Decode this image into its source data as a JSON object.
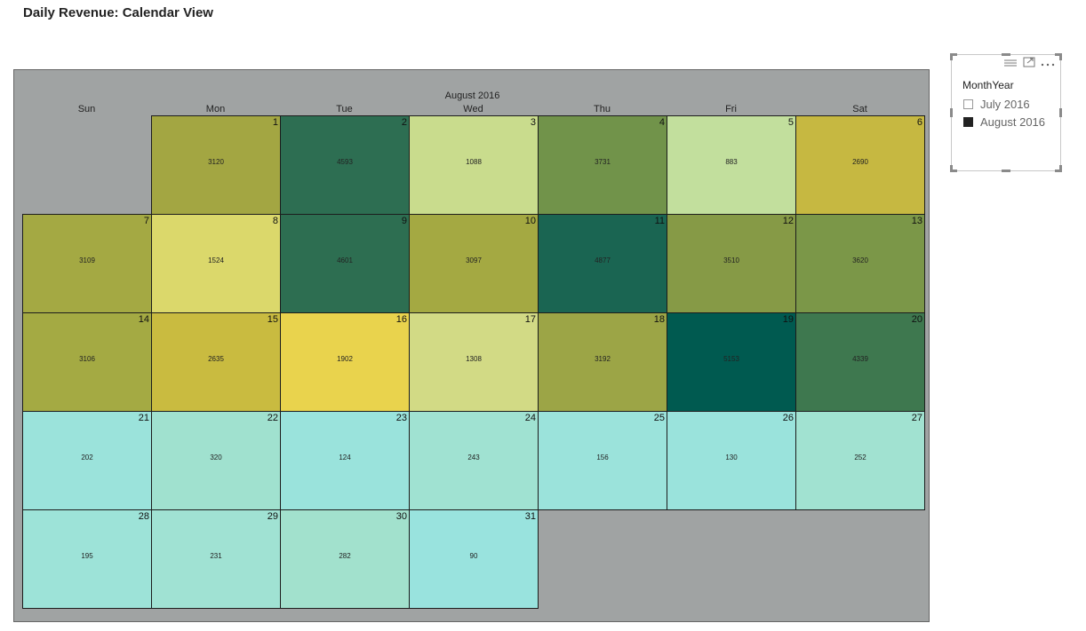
{
  "page": {
    "title": "Daily Revenue: Calendar View"
  },
  "calendar": {
    "month_label": "August 2016",
    "weekdays": [
      "Sun",
      "Mon",
      "Tue",
      "Wed",
      "Thu",
      "Fri",
      "Sat"
    ],
    "days": [
      {
        "day": "1",
        "value": "3120",
        "color": "#a3a642"
      },
      {
        "day": "2",
        "value": "4593",
        "color": "#2d6e52"
      },
      {
        "day": "3",
        "value": "1088",
        "color": "#c9dc8d"
      },
      {
        "day": "4",
        "value": "3731",
        "color": "#71934a"
      },
      {
        "day": "5",
        "value": "883",
        "color": "#c2df9d"
      },
      {
        "day": "6",
        "value": "2690",
        "color": "#c6b841"
      },
      {
        "day": "7",
        "value": "3109",
        "color": "#a4a943"
      },
      {
        "day": "8",
        "value": "1524",
        "color": "#dbd86b"
      },
      {
        "day": "9",
        "value": "4601",
        "color": "#2d6e51"
      },
      {
        "day": "10",
        "value": "3097",
        "color": "#a4a942"
      },
      {
        "day": "11",
        "value": "4877",
        "color": "#1a6552"
      },
      {
        "day": "12",
        "value": "3510",
        "color": "#869a46"
      },
      {
        "day": "13",
        "value": "3620",
        "color": "#7b9748"
      },
      {
        "day": "14",
        "value": "3106",
        "color": "#a4aa43"
      },
      {
        "day": "15",
        "value": "2635",
        "color": "#c9bb40"
      },
      {
        "day": "16",
        "value": "1902",
        "color": "#e9d34d"
      },
      {
        "day": "17",
        "value": "1308",
        "color": "#d2da85"
      },
      {
        "day": "18",
        "value": "3192",
        "color": "#9ca546"
      },
      {
        "day": "19",
        "value": "5153",
        "color": "#005a50"
      },
      {
        "day": "20",
        "value": "4339",
        "color": "#3e784f"
      },
      {
        "day": "21",
        "value": "202",
        "color": "#9be3db"
      },
      {
        "day": "22",
        "value": "320",
        "color": "#a0e1cf"
      },
      {
        "day": "23",
        "value": "124",
        "color": "#9ae3dc"
      },
      {
        "day": "24",
        "value": "243",
        "color": "#a0e2d2"
      },
      {
        "day": "25",
        "value": "156",
        "color": "#9be3db"
      },
      {
        "day": "26",
        "value": "130",
        "color": "#9ae3dc"
      },
      {
        "day": "27",
        "value": "252",
        "color": "#a1e2d1"
      },
      {
        "day": "28",
        "value": "195",
        "color": "#9de3d8"
      },
      {
        "day": "29",
        "value": "231",
        "color": "#a0e2d3"
      },
      {
        "day": "30",
        "value": "282",
        "color": "#a2e1cd"
      },
      {
        "day": "31",
        "value": "90",
        "color": "#99e3de"
      }
    ]
  },
  "slicer": {
    "title": "MonthYear",
    "toolbar": {
      "focus_icon": "focus-mode-icon",
      "more_icon": "more-options-icon",
      "drag_icon": "drag-handle-icon"
    },
    "items": [
      {
        "label": "July 2016",
        "checked": false
      },
      {
        "label": "August 2016",
        "checked": true
      }
    ]
  }
}
